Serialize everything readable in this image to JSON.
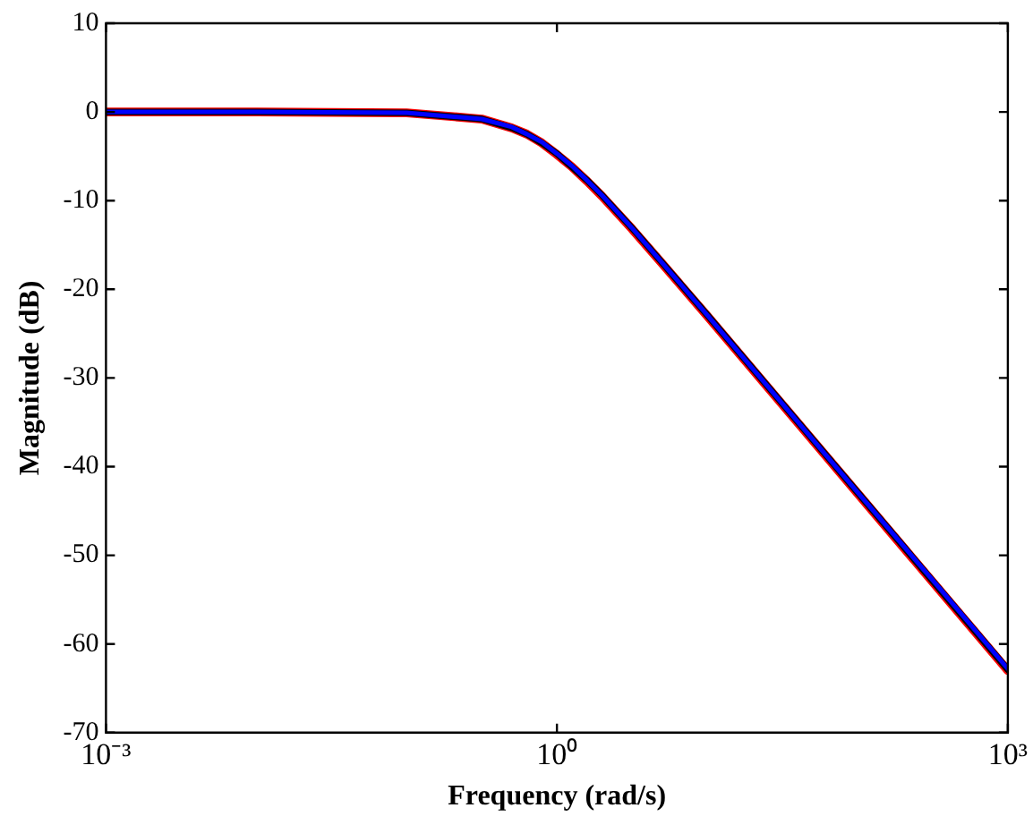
{
  "chart_data": {
    "type": "line",
    "xlabel": "Frequency (rad/s)",
    "ylabel": "Magnitude (dB)",
    "log": "x",
    "grid": false,
    "legend": false,
    "marker": "none",
    "line_style": "solid",
    "x": [
      0.001,
      0.01,
      0.1,
      0.316,
      0.501,
      0.631,
      0.794,
      1,
      1.259,
      1.585,
      1.995,
      3.162,
      5.012,
      10,
      31.62,
      100,
      316.2,
      1000
    ],
    "series": [
      {
        "color": "#ff0000",
        "values": [
          0,
          0,
          -0.1,
          -0.8,
          -1.8,
          -2.5,
          -3.5,
          -4.8,
          -6.2,
          -7.8,
          -9.5,
          -13.2,
          -17.1,
          -23.0,
          -33.0,
          -43.0,
          -53.0,
          -63.0
        ]
      },
      {
        "color": "#000000",
        "values": [
          0,
          0,
          -0.1,
          -0.8,
          -1.8,
          -2.5,
          -3.5,
          -4.7,
          -6.2,
          -7.7,
          -9.4,
          -13.1,
          -17.0,
          -22.9,
          -32.9,
          -42.9,
          -52.9,
          -62.9
        ]
      },
      {
        "color": "#0000ff",
        "values": [
          0,
          0,
          -0.1,
          -0.8,
          -1.7,
          -2.5,
          -3.4,
          -4.7,
          -6.1,
          -7.7,
          -9.4,
          -13.1,
          -17.0,
          -22.9,
          -32.9,
          -42.9,
          -52.8,
          -62.8
        ]
      }
    ],
    "xlim": [
      0.001,
      1000
    ],
    "xticks": [
      {
        "value": 0.001,
        "label": "10⁻³"
      },
      {
        "value": 1,
        "label": "10⁰"
      },
      {
        "value": 1000,
        "label": "10³"
      }
    ],
    "ylim": [
      -70,
      10
    ],
    "yticks": [
      -70,
      -60,
      -50,
      -40,
      -30,
      -20,
      -10,
      0,
      10
    ]
  }
}
